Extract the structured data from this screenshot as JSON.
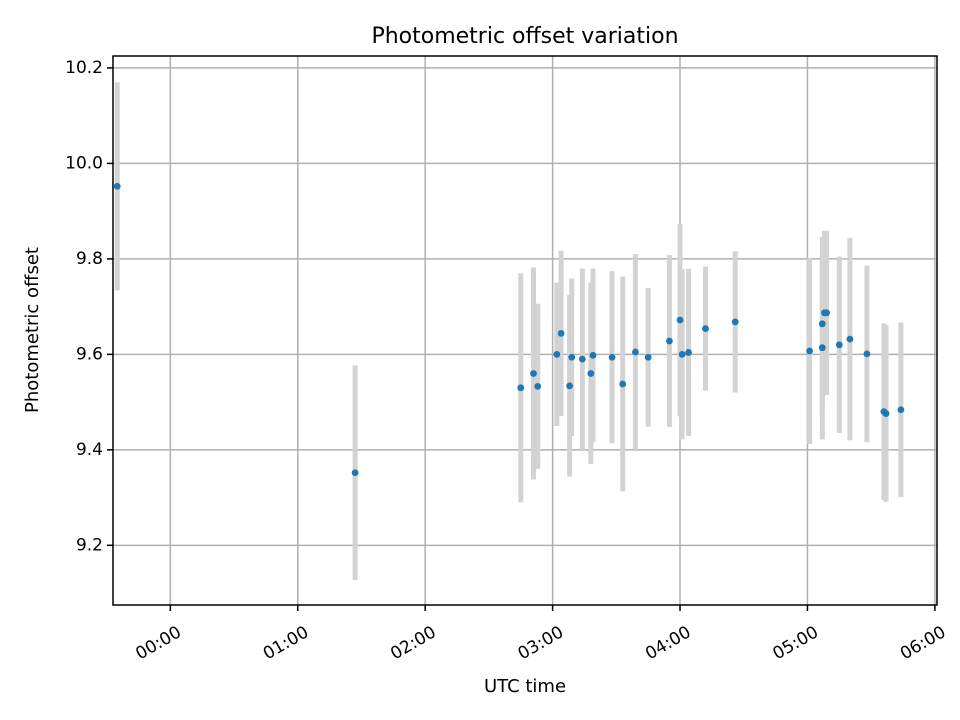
{
  "chart_data": {
    "type": "scatter",
    "title": "Photometric offset variation",
    "xlabel": "UTC time",
    "ylabel": "Photometric offset",
    "x_axis": "time",
    "xlim": [
      "-00:27",
      "06:01"
    ],
    "ylim": [
      9.075,
      10.225
    ],
    "xticks": [
      "00:00",
      "01:00",
      "02:00",
      "03:00",
      "04:00",
      "05:00",
      "06:00"
    ],
    "yticks": [
      9.2,
      9.4,
      9.6,
      9.8,
      10.0,
      10.2
    ],
    "grid": true,
    "colors": {
      "marker": "#1f77b4",
      "errorbar": "#d3d3d3"
    },
    "points": [
      {
        "x": "-00:25",
        "y": 9.952,
        "err": 0.218
      },
      {
        "x": "01:27",
        "y": 9.352,
        "err": 0.225
      },
      {
        "x": "02:45",
        "y": 9.53,
        "err": 0.24
      },
      {
        "x": "02:51",
        "y": 9.56,
        "err": 0.222
      },
      {
        "x": "02:53",
        "y": 9.533,
        "err": 0.173
      },
      {
        "x": "03:02",
        "y": 9.6,
        "err": 0.15
      },
      {
        "x": "03:04",
        "y": 9.644,
        "err": 0.173
      },
      {
        "x": "03:08",
        "y": 9.534,
        "err": 0.19
      },
      {
        "x": "03:09",
        "y": 9.594,
        "err": 0.165
      },
      {
        "x": "03:14",
        "y": 9.59,
        "err": 0.19
      },
      {
        "x": "03:18",
        "y": 9.56,
        "err": 0.19
      },
      {
        "x": "03:19",
        "y": 9.598,
        "err": 0.182
      },
      {
        "x": "03:28",
        "y": 9.594,
        "err": 0.18
      },
      {
        "x": "03:33",
        "y": 9.538,
        "err": 0.225
      },
      {
        "x": "03:39",
        "y": 9.605,
        "err": 0.205
      },
      {
        "x": "03:45",
        "y": 9.594,
        "err": 0.145
      },
      {
        "x": "03:55",
        "y": 9.628,
        "err": 0.18
      },
      {
        "x": "04:00",
        "y": 9.672,
        "err": 0.202
      },
      {
        "x": "04:01",
        "y": 9.6,
        "err": 0.178
      },
      {
        "x": "04:04",
        "y": 9.604,
        "err": 0.175
      },
      {
        "x": "04:12",
        "y": 9.654,
        "err": 0.13
      },
      {
        "x": "04:26",
        "y": 9.668,
        "err": 0.148
      },
      {
        "x": "05:01",
        "y": 9.607,
        "err": 0.195
      },
      {
        "x": "05:07",
        "y": 9.664,
        "err": 0.182
      },
      {
        "x": "05:07",
        "y": 9.614,
        "err": 0.192
      },
      {
        "x": "05:08",
        "y": 9.687,
        "err": 0.172
      },
      {
        "x": "05:09",
        "y": 9.687,
        "err": 0.172
      },
      {
        "x": "05:15",
        "y": 9.62,
        "err": 0.185
      },
      {
        "x": "05:20",
        "y": 9.632,
        "err": 0.212
      },
      {
        "x": "05:28",
        "y": 9.601,
        "err": 0.185
      },
      {
        "x": "05:36",
        "y": 9.48,
        "err": 0.185
      },
      {
        "x": "05:37",
        "y": 9.476,
        "err": 0.185
      },
      {
        "x": "05:44",
        "y": 9.484,
        "err": 0.183
      }
    ]
  }
}
